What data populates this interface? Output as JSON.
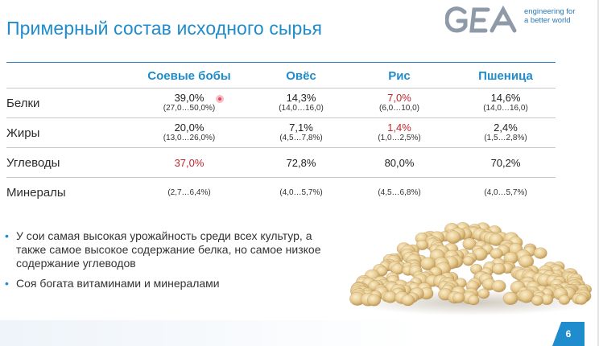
{
  "slide": {
    "title": "Примерный состав исходного сырья",
    "page_number": "6"
  },
  "logo": {
    "text": "GEA",
    "tagline_line1": "engineering for",
    "tagline_line2": "a better world"
  },
  "table": {
    "columns": [
      "Соевые бобы",
      "Овёс",
      "Рис",
      "Пшеница"
    ],
    "rows": [
      {
        "label": "Белки",
        "cells": [
          {
            "value": "39,0%",
            "range": "(27,0…50,0%)",
            "highlight": false
          },
          {
            "value": "14,3%",
            "range": "(14,0…16,0)",
            "highlight": false
          },
          {
            "value": "7,0%",
            "range": "(6,0…10,0)",
            "highlight": true
          },
          {
            "value": "14,6%",
            "range": "(14,0…16,0)",
            "highlight": false
          }
        ]
      },
      {
        "label": "Жиры",
        "cells": [
          {
            "value": "20,0%",
            "range": "(13,0…26,0%)",
            "highlight": false
          },
          {
            "value": "7,1%",
            "range": "(4,5…7,8%)",
            "highlight": false
          },
          {
            "value": "1,4%",
            "range": "(1,0…2,5%)",
            "highlight": true
          },
          {
            "value": "2,4%",
            "range": "(1,5…2,8%)",
            "highlight": false
          }
        ]
      },
      {
        "label": "Углеводы",
        "cells": [
          {
            "value": "37,0%",
            "range": "",
            "highlight": true
          },
          {
            "value": "72,8%",
            "range": "",
            "highlight": false
          },
          {
            "value": "80,0%",
            "range": "",
            "highlight": false
          },
          {
            "value": "70,2%",
            "range": "",
            "highlight": false
          }
        ]
      },
      {
        "label": "Минералы",
        "cells": [
          {
            "value": "",
            "range": "(2,7…6,4%)",
            "highlight": false
          },
          {
            "value": "",
            "range": "(4,0…5,7%)",
            "highlight": false
          },
          {
            "value": "",
            "range": "(4,5…6,8%)",
            "highlight": false
          },
          {
            "value": "",
            "range": "(4,0…5,7%)",
            "highlight": false
          }
        ]
      }
    ]
  },
  "bullets": [
    "У сои самая высокая урожайность среди всех культур, а также самое высокое содержание белка, но самое низкое содержание углеводов",
    "Соя богата витаминами и минералами"
  ],
  "colors": {
    "accent": "#1e8ccd",
    "highlight": "#c0262d",
    "bean": "#e8cf9a"
  },
  "icons": {
    "bullet": "bullet-dot-icon",
    "image": "soybeans-image",
    "logo": "gea-logo"
  }
}
